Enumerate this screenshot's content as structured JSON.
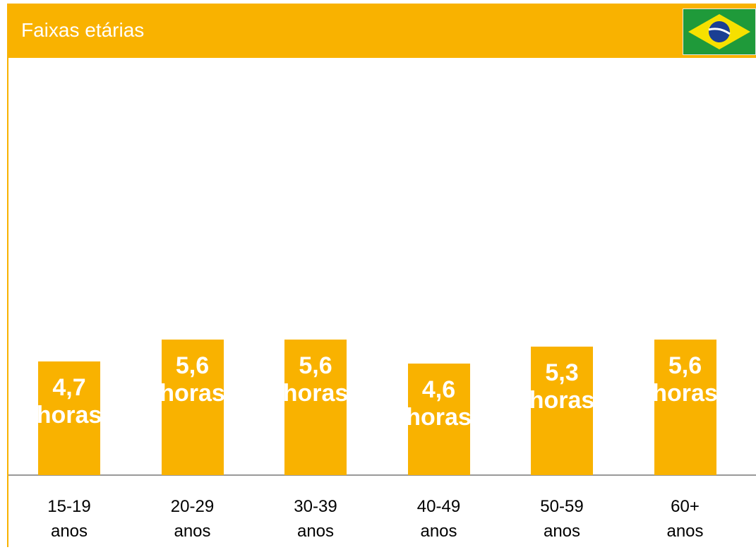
{
  "chart_data": {
    "type": "bar",
    "title": "Faixas etárias",
    "categories": [
      "15-19 anos",
      "20-29 anos",
      "30-39 anos",
      "40-49 anos",
      "50-59 anos",
      "60+ anos"
    ],
    "values": [
      4.7,
      5.6,
      5.6,
      4.6,
      5.3,
      5.6
    ],
    "value_labels": [
      "4,7 horas",
      "5,6 horas",
      "5,6 horas",
      "4,6 horas",
      "5,3 horas",
      "5,6 horas"
    ],
    "color": "#F9B200",
    "ylim": [
      0,
      17
    ]
  }
}
